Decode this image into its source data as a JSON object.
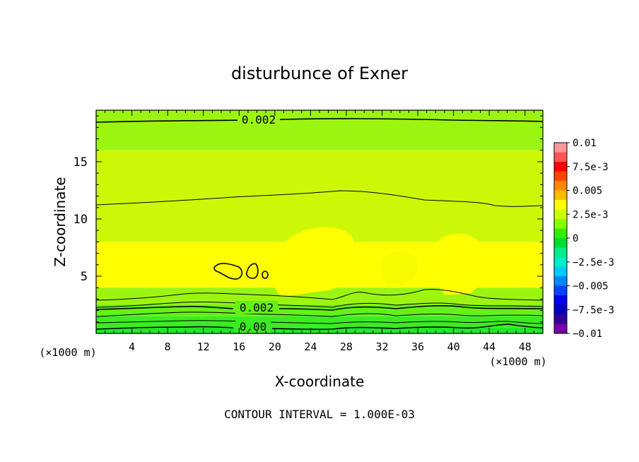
{
  "chart_data": {
    "type": "heatmap",
    "title": "disturbunce of Exner",
    "xlabel": "X-coordinate",
    "ylabel": "Z-coordinate",
    "x_unit_left": "(×1000 m)",
    "x_unit_right": "(×1000 m)",
    "xlim": [
      0,
      50
    ],
    "ylim": [
      0,
      19.5
    ],
    "x_ticks": [
      4,
      8,
      12,
      16,
      20,
      24,
      28,
      32,
      36,
      40,
      44,
      48
    ],
    "x_tick_labels": [
      "4",
      "8",
      "12",
      "16",
      "20",
      "24",
      "28",
      "32",
      "36",
      "40",
      "44",
      "48"
    ],
    "y_ticks": [
      5,
      10,
      15
    ],
    "y_tick_labels": [
      "5",
      "10",
      "15"
    ],
    "footer": "CONTOUR INTERVAL = 1.000E-03",
    "colorbar": {
      "min": -0.01,
      "max": 0.01,
      "labels": [
        "0.01",
        "7.5e-3",
        "0.005",
        "2.5e-3",
        "0",
        "−2.5e-3",
        "−0.005",
        "−7.5e-3",
        "−0.01"
      ],
      "label_values": [
        0.01,
        0.0075,
        0.005,
        0.0025,
        0,
        -0.0025,
        -0.005,
        -0.0075,
        -0.01
      ],
      "colors": [
        "#ff9999",
        "#ff5555",
        "#ff0000",
        "#ff4400",
        "#ff8800",
        "#ffbb00",
        "#ffff00",
        "#ccff00",
        "#88ff00",
        "#33ee00",
        "#00dd33",
        "#00ee88",
        "#00eecc",
        "#00ccff",
        "#0088ff",
        "#0044ff",
        "#0000ee",
        "#0000bb",
        "#330099",
        "#7700aa"
      ]
    },
    "bands": [
      {
        "z0": 0.0,
        "z1": 0.5,
        "value": 0.0,
        "color": "#22e82a"
      },
      {
        "z0": 0.5,
        "z1": 1.5,
        "value": 0.0005,
        "color": "#3cec22"
      },
      {
        "z0": 1.5,
        "z1": 2.5,
        "value": 0.001,
        "color": "#66f018"
      },
      {
        "z0": 2.5,
        "z1": 4.0,
        "value": 0.002,
        "color": "#9cf510"
      },
      {
        "z0": 4.0,
        "z1": 8.0,
        "value": 0.003,
        "color": "#ffff00"
      },
      {
        "z0": 8.0,
        "z1": 16.0,
        "value": 0.0025,
        "color": "#ccf808"
      },
      {
        "z0": 16.0,
        "z1": 19.5,
        "value": 0.002,
        "color": "#9cf510"
      }
    ],
    "contour_labels": [
      {
        "text": "0.002",
        "x": 21.5,
        "z": 19.0
      },
      {
        "text": "0.002",
        "x": 18,
        "z": 2.5
      },
      {
        "text": "0.00",
        "x": 18,
        "z": 0.6
      }
    ]
  }
}
